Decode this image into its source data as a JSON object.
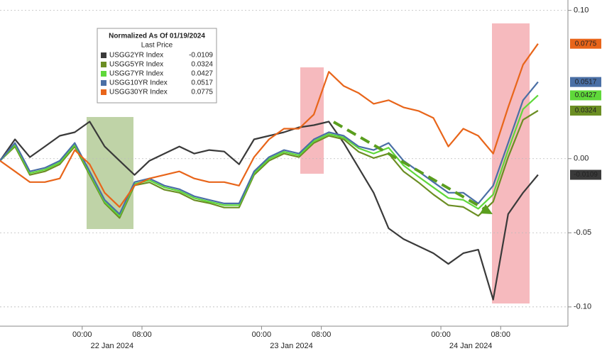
{
  "chart_data": {
    "type": "line",
    "legend_title": "Normalized As Of 01/19/2024",
    "legend_subtitle": "Last Price",
    "x": [
      "2024-01-21T13:00",
      "2024-01-21T15:00",
      "2024-01-21T17:00",
      "2024-01-21T19:00",
      "2024-01-21T21:00",
      "2024-01-21T23:00",
      "2024-01-22T01:00",
      "2024-01-22T03:00",
      "2024-01-22T05:00",
      "2024-01-22T07:00",
      "2024-01-22T09:00",
      "2024-01-22T11:00",
      "2024-01-22T13:00",
      "2024-01-22T15:00",
      "2024-01-22T17:00",
      "2024-01-22T19:00",
      "2024-01-22T21:00",
      "2024-01-22T23:00",
      "2024-01-23T01:00",
      "2024-01-23T03:00",
      "2024-01-23T05:00",
      "2024-01-23T07:00",
      "2024-01-23T09:00",
      "2024-01-23T11:00",
      "2024-01-23T13:00",
      "2024-01-23T15:00",
      "2024-01-23T17:00",
      "2024-01-23T19:00",
      "2024-01-23T21:00",
      "2024-01-23T23:00",
      "2024-01-24T01:00",
      "2024-01-24T03:00",
      "2024-01-24T05:00",
      "2024-01-24T07:00",
      "2024-01-24T09:00",
      "2024-01-24T11:00",
      "2024-01-24T13:00"
    ],
    "xlim": [
      "2024-01-21T13:00",
      "2024-01-24T17:00"
    ],
    "xticks": [
      {
        "value": "2024-01-22T00:00",
        "label": "00:00"
      },
      {
        "value": "2024-01-22T08:00",
        "label": "08:00"
      },
      {
        "value": "2024-01-23T00:00",
        "label": "00:00"
      },
      {
        "value": "2024-01-23T08:00",
        "label": "08:00"
      },
      {
        "value": "2024-01-24T00:00",
        "label": "00:00"
      },
      {
        "value": "2024-01-24T08:00",
        "label": "08:00"
      }
    ],
    "x_group_labels": [
      "22 Jan 2024",
      "23 Jan 2024",
      "24 Jan 2024"
    ],
    "ylim": [
      -0.113,
      0.107
    ],
    "yticks": [
      {
        "value": 0.1,
        "label": "0.10"
      },
      {
        "value": 0,
        "label": "0.00"
      },
      -0.05,
      {
        "value": -0.1,
        "label": "-0.10"
      }
    ],
    "grid": true,
    "series": [
      {
        "name": "USGG2YR Index",
        "color": "#3a3a3a",
        "values": [
          -0.0014,
          0.013,
          0.001,
          0.0082,
          0.0154,
          0.0178,
          0.025,
          0.0082,
          -0.0014,
          -0.011,
          -0.0014,
          0.0034,
          0.0082,
          0.0034,
          0.0058,
          0.0048,
          -0.0038,
          0.013,
          0.0154,
          0.0178,
          0.0211,
          0.0226,
          0.025,
          0.0106,
          -0.0062,
          -0.023,
          -0.047,
          -0.0542,
          -0.059,
          -0.0638,
          -0.071,
          -0.0638,
          -0.0614,
          -0.0951,
          -0.0374,
          -0.023,
          -0.0109
        ]
      },
      {
        "name": "USGG5YR Index",
        "color": "#6b8e23",
        "values": [
          -0.0014,
          0.0082,
          -0.011,
          -0.0086,
          -0.0038,
          0.0082,
          -0.011,
          -0.03,
          -0.04,
          -0.018,
          -0.016,
          -0.021,
          -0.023,
          -0.028,
          -0.03,
          -0.033,
          -0.033,
          -0.011,
          -0.0014,
          0.0034,
          0.001,
          0.0106,
          0.0154,
          0.013,
          0.0046,
          0.0004,
          0.0034,
          -0.0086,
          -0.016,
          -0.0242,
          -0.0314,
          -0.0326,
          -0.0386,
          -0.029,
          0.001,
          0.0262,
          0.0324
        ]
      },
      {
        "name": "USGG7YR Index",
        "color": "#5fd83a",
        "values": [
          -0.0014,
          0.0094,
          -0.0098,
          -0.0074,
          -0.0026,
          0.0094,
          -0.0098,
          -0.029,
          -0.0386,
          -0.017,
          -0.0146,
          -0.0194,
          -0.0218,
          -0.0266,
          -0.029,
          -0.0314,
          -0.0314,
          -0.0098,
          -0.0002,
          0.0046,
          0.0022,
          0.0118,
          0.0166,
          0.0142,
          0.007,
          0.0034,
          0.0074,
          -0.0046,
          -0.0122,
          -0.0194,
          -0.0266,
          -0.0278,
          -0.0338,
          -0.0242,
          0.0058,
          0.0334,
          0.0427
        ]
      },
      {
        "name": "USGG10YR Index",
        "color": "#4a6fa5",
        "values": [
          -0.0014,
          0.0106,
          -0.0086,
          -0.0062,
          -0.0014,
          0.0106,
          -0.0086,
          -0.0278,
          -0.0374,
          -0.0158,
          -0.0134,
          -0.0182,
          -0.0206,
          -0.0254,
          -0.0278,
          -0.0302,
          -0.0302,
          -0.0086,
          0.001,
          0.0058,
          0.0034,
          0.013,
          0.0178,
          0.0154,
          0.0082,
          0.0058,
          0.0106,
          -0.0014,
          -0.0086,
          -0.0158,
          -0.023,
          -0.023,
          -0.0302,
          -0.0182,
          0.0106,
          0.0394,
          0.0517
        ]
      },
      {
        "name": "USGG30YR Index",
        "color": "#e8651a",
        "values": [
          -0.0014,
          -0.0086,
          -0.0158,
          -0.0158,
          -0.0134,
          0.0058,
          -0.0038,
          -0.023,
          -0.0326,
          -0.0182,
          -0.0134,
          -0.011,
          -0.0086,
          -0.0134,
          -0.0158,
          -0.0158,
          -0.0182,
          0.001,
          0.013,
          0.0202,
          0.0202,
          0.0298,
          0.0586,
          0.049,
          0.0442,
          0.037,
          0.0394,
          0.0346,
          0.0322,
          0.0274,
          0.0082,
          0.0202,
          0.0154,
          0.0034,
          0.0346,
          0.0634,
          0.0775
        ]
      }
    ]
  }
}
